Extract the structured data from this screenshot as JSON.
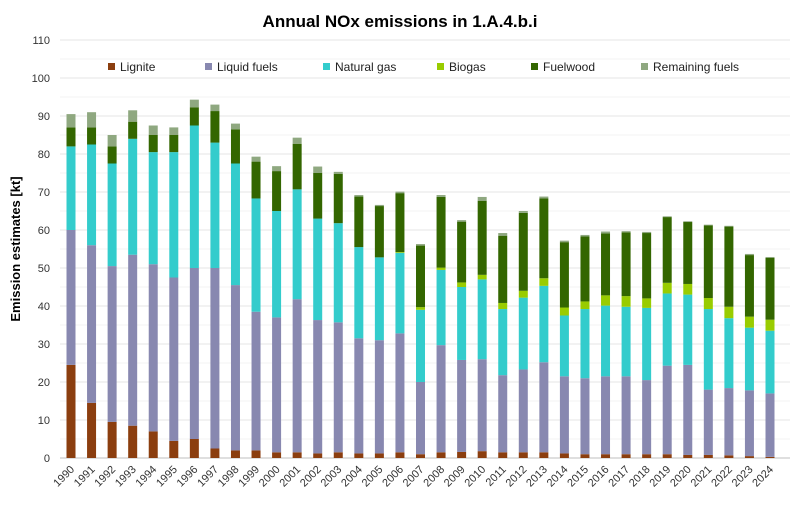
{
  "chart_data": {
    "type": "bar",
    "stacked": true,
    "title": "Annual NOx emissions in 1.A.4.b.i",
    "xlabel": "",
    "ylabel": "Emission estimates [kt]",
    "ylim": [
      0,
      110
    ],
    "yticks": [
      0,
      10,
      20,
      30,
      40,
      50,
      60,
      70,
      80,
      90,
      100,
      110
    ],
    "grid": true,
    "legend_position": "top",
    "categories": [
      "1990",
      "1991",
      "1992",
      "1993",
      "1994",
      "1995",
      "1996",
      "1997",
      "1998",
      "1999",
      "2000",
      "2001",
      "2002",
      "2003",
      "2004",
      "2005",
      "2006",
      "2007",
      "2008",
      "2009",
      "2010",
      "2011",
      "2012",
      "2013",
      "2014",
      "2015",
      "2016",
      "2017",
      "2018",
      "2019",
      "2020",
      "2021",
      "2022",
      "2023",
      "2024"
    ],
    "series": [
      {
        "name": "Lignite",
        "color": "#8B3E0F",
        "values": [
          24.5,
          14.5,
          9.5,
          8.5,
          7,
          4.5,
          5,
          2.5,
          2,
          2,
          1.5,
          1.5,
          1.2,
          1.5,
          1.2,
          1.2,
          1.5,
          1,
          1.5,
          1.6,
          1.8,
          1.5,
          1.5,
          1.5,
          1.2,
          1,
          1,
          1,
          1,
          1,
          0.8,
          0.8,
          0.7,
          0.5,
          0.3
        ]
      },
      {
        "name": "Liquid fuels",
        "color": "#8888B0",
        "values": [
          35.5,
          41.5,
          41,
          45,
          44,
          43,
          45,
          47.5,
          43.5,
          36.5,
          35.5,
          40.3,
          35.1,
          34.2,
          30.3,
          29.8,
          31.3,
          19,
          28.2,
          24.2,
          24.2,
          20.3,
          21.8,
          23.7,
          20.3,
          20,
          20.5,
          20.5,
          19.5,
          23.3,
          23.7,
          17.2,
          17.7,
          17.3,
          16.7
        ]
      },
      {
        "name": "Natural gas",
        "color": "#33CCCC",
        "values": [
          22,
          26.5,
          27,
          30.5,
          29.5,
          33,
          37.5,
          33,
          32,
          29.8,
          28,
          28.9,
          26.7,
          26.1,
          24,
          21.8,
          21.2,
          19,
          19.8,
          19.2,
          21,
          17.4,
          18.9,
          20.1,
          16,
          18.2,
          18.6,
          18.3,
          19,
          19,
          18.5,
          21.2,
          18.4,
          16.5,
          16.5
        ]
      },
      {
        "name": "Biogas",
        "color": "#99CC00",
        "values": [
          0,
          0,
          0,
          0,
          0,
          0,
          0,
          0,
          0,
          0,
          0,
          0,
          0,
          0,
          0,
          0,
          0.2,
          0.7,
          0.6,
          1.2,
          1.2,
          1.6,
          1.8,
          2,
          2.1,
          2,
          2.7,
          2.8,
          2.5,
          2.8,
          2.8,
          2.9,
          3,
          2.9,
          2.9
        ]
      },
      {
        "name": "Fuelwood",
        "color": "#336600",
        "values": [
          5,
          4.5,
          4.5,
          4.5,
          4.5,
          4.5,
          4.8,
          8.3,
          9,
          9.7,
          10.5,
          12,
          12,
          13,
          13.3,
          13.5,
          15.5,
          16.2,
          18.6,
          16,
          19.5,
          17.7,
          20.5,
          21,
          17.2,
          17.1,
          16.3,
          16.8,
          17.2,
          17.3,
          16.3,
          19.1,
          21.1,
          16.2,
          16.3
        ]
      },
      {
        "name": "Remaining fuels",
        "color": "#8FA880",
        "values": [
          3.5,
          4,
          3,
          3,
          2.5,
          2,
          2,
          1.7,
          1.5,
          1.3,
          1.3,
          1.6,
          1.7,
          0.5,
          0.4,
          0.3,
          0.4,
          0.4,
          0.5,
          0.4,
          1,
          0.7,
          0.5,
          0.5,
          0.4,
          0.4,
          0.5,
          0.3,
          0.3,
          0.2,
          0.2,
          0.2,
          0.2,
          0.3,
          0.2
        ]
      }
    ]
  }
}
